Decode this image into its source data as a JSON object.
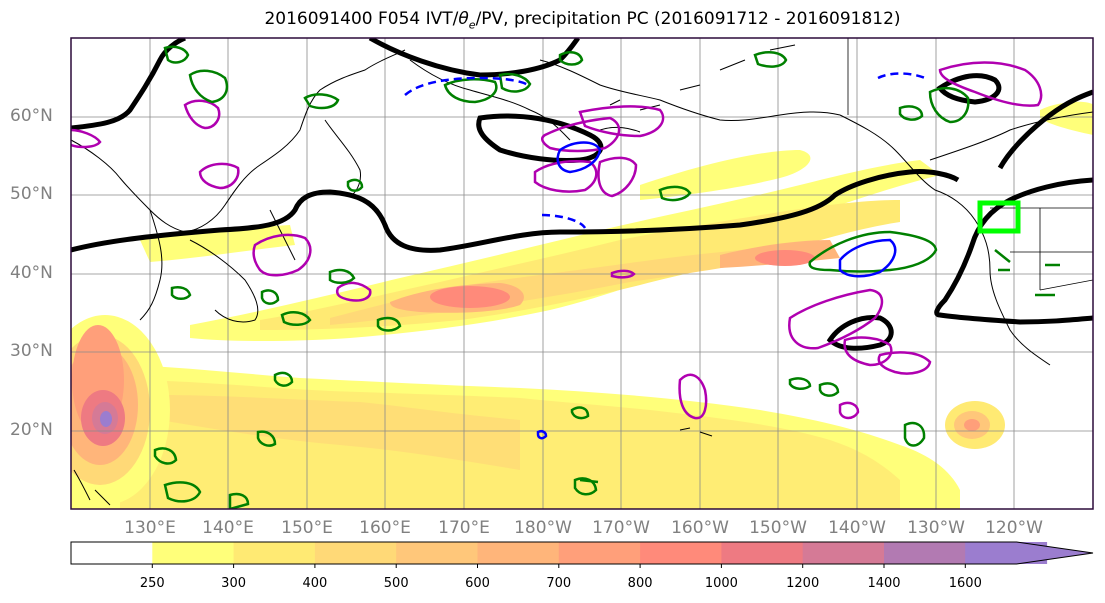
{
  "title_pre": "2016091400 F054 IVT/",
  "title_theta": "θ",
  "title_sub": "e",
  "title_post": "/PV, precipitation PC (2016091712 - 2016091812)",
  "lat_labels": [
    "60°N",
    "50°N",
    "40°N",
    "30°N",
    "20°N"
  ],
  "lon_labels": [
    "130°E",
    "140°E",
    "150°E",
    "160°E",
    "170°E",
    "180°W",
    "170°W",
    "160°W",
    "150°W",
    "140°W",
    "130°W",
    "120°W"
  ],
  "colorbar": {
    "ticks": [
      "250",
      "300",
      "400",
      "500",
      "600",
      "700",
      "800",
      "1000",
      "1200",
      "1400",
      "1600"
    ],
    "colors": [
      "#ffffff",
      "#ffff7a",
      "#ffea73",
      "#ffd977",
      "#ffc77a",
      "#ffb57a",
      "#ff9f7a",
      "#ff8a7a",
      "#ee7a82",
      "#d57a96",
      "#b27ab2",
      "#9b7dcf"
    ]
  },
  "highlight_box_color": "#00ff00",
  "contour_colors": {
    "theta_e": "#000000",
    "pv": "#b000b0",
    "precip": "#008000",
    "neg": "#0000ff"
  }
}
